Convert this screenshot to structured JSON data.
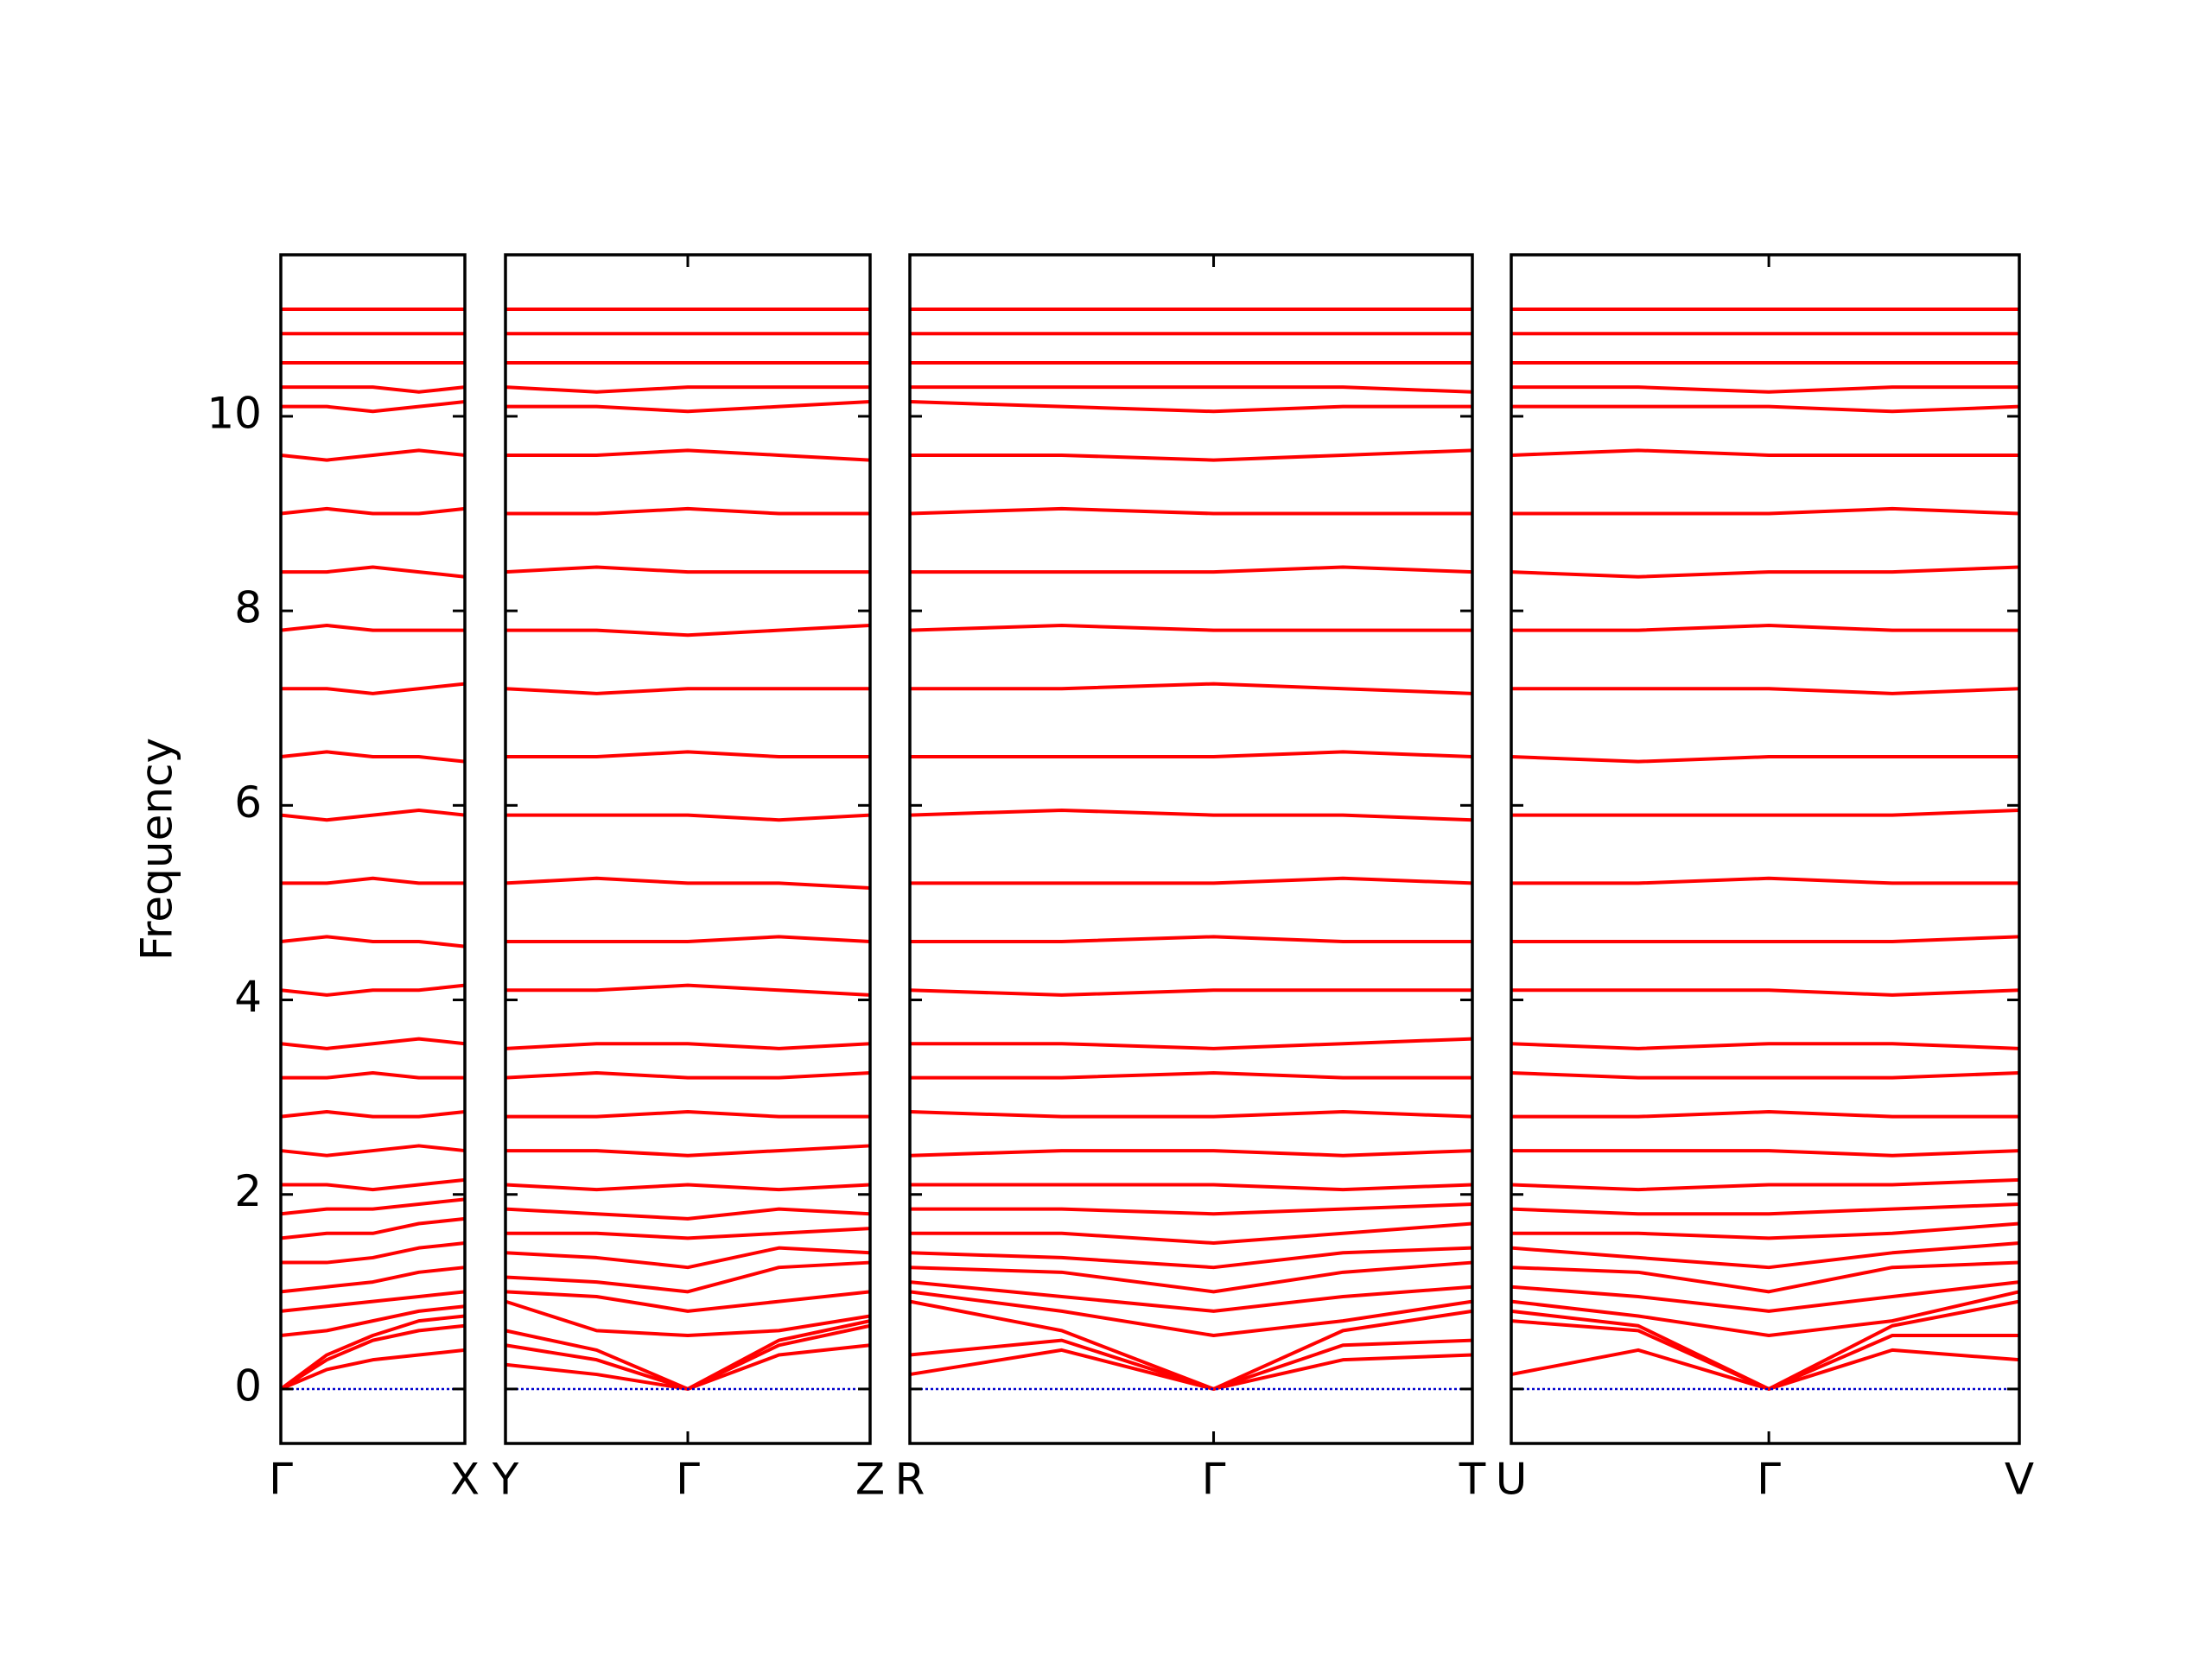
{
  "chart_data": [
    {
      "type": "line",
      "ylabel": "Frequency",
      "ylim": [
        -0.56,
        11.66
      ],
      "yticks": [
        0,
        2,
        4,
        6,
        8,
        10
      ],
      "color": "#ff0000",
      "zero_line": "#0000cc",
      "xlim": [
        0,
        1
      ],
      "xticks": [
        {
          "value": 0,
          "label": "Γ"
        },
        {
          "value": 1,
          "label": "X"
        }
      ],
      "x": [
        0,
        0.25,
        0.5,
        0.75,
        1
      ],
      "series": [
        {
          "values": [
            0,
            0.2,
            0.3,
            0.35,
            0.4
          ]
        },
        {
          "values": [
            0,
            0.3,
            0.5,
            0.6,
            0.65
          ]
        },
        {
          "values": [
            0,
            0.35,
            0.55,
            0.7,
            0.75
          ]
        },
        {
          "values": [
            0.55,
            0.6,
            0.7,
            0.8,
            0.85
          ]
        },
        {
          "values": [
            0.8,
            0.85,
            0.9,
            0.95,
            1.0
          ]
        },
        {
          "values": [
            1.0,
            1.05,
            1.1,
            1.2,
            1.25
          ]
        },
        {
          "values": [
            1.3,
            1.3,
            1.35,
            1.45,
            1.5
          ]
        },
        {
          "values": [
            1.55,
            1.6,
            1.6,
            1.7,
            1.75
          ]
        },
        {
          "values": [
            1.8,
            1.85,
            1.85,
            1.9,
            1.95
          ]
        },
        {
          "values": [
            2.1,
            2.1,
            2.05,
            2.1,
            2.15
          ]
        },
        {
          "values": [
            2.45,
            2.4,
            2.45,
            2.5,
            2.45
          ]
        },
        {
          "values": [
            2.8,
            2.85,
            2.8,
            2.8,
            2.85
          ]
        },
        {
          "values": [
            3.2,
            3.2,
            3.25,
            3.2,
            3.2
          ]
        },
        {
          "values": [
            3.55,
            3.5,
            3.55,
            3.6,
            3.55
          ]
        },
        {
          "values": [
            4.1,
            4.05,
            4.1,
            4.1,
            4.15
          ]
        },
        {
          "values": [
            4.6,
            4.65,
            4.6,
            4.6,
            4.55
          ]
        },
        {
          "values": [
            5.2,
            5.2,
            5.25,
            5.2,
            5.2
          ]
        },
        {
          "values": [
            5.9,
            5.85,
            5.9,
            5.95,
            5.9
          ]
        },
        {
          "values": [
            6.5,
            6.55,
            6.5,
            6.5,
            6.45
          ]
        },
        {
          "values": [
            7.2,
            7.2,
            7.15,
            7.2,
            7.25
          ]
        },
        {
          "values": [
            7.8,
            7.85,
            7.8,
            7.8,
            7.8
          ]
        },
        {
          "values": [
            8.4,
            8.4,
            8.45,
            8.4,
            8.35
          ]
        },
        {
          "values": [
            9.0,
            9.05,
            9.0,
            9.0,
            9.05
          ]
        },
        {
          "values": [
            9.6,
            9.55,
            9.6,
            9.65,
            9.6
          ]
        },
        {
          "values": [
            10.1,
            10.1,
            10.05,
            10.1,
            10.15
          ]
        },
        {
          "values": [
            10.3,
            10.3,
            10.3,
            10.25,
            10.3
          ]
        },
        {
          "values": [
            10.55,
            10.55,
            10.55,
            10.55,
            10.55
          ]
        },
        {
          "values": [
            10.85,
            10.85,
            10.85,
            10.85,
            10.85
          ]
        },
        {
          "values": [
            11.1,
            11.1,
            11.1,
            11.1,
            11.1
          ]
        }
      ]
    },
    {
      "type": "line",
      "ylim": [
        -0.56,
        11.66
      ],
      "color": "#ff0000",
      "zero_line": "#0000cc",
      "xlim": [
        0,
        2
      ],
      "xticks": [
        {
          "value": 0,
          "label": "Y"
        },
        {
          "value": 1,
          "label": "Γ"
        },
        {
          "value": 2,
          "label": "Z"
        }
      ],
      "x": [
        0,
        0.5,
        1,
        1.5,
        2
      ],
      "series": [
        {
          "values": [
            0.25,
            0.15,
            0,
            0.35,
            0.45
          ]
        },
        {
          "values": [
            0.45,
            0.3,
            0,
            0.45,
            0.65
          ]
        },
        {
          "values": [
            0.6,
            0.4,
            0,
            0.5,
            0.7
          ]
        },
        {
          "values": [
            0.9,
            0.6,
            0.55,
            0.6,
            0.75
          ]
        },
        {
          "values": [
            1.0,
            0.95,
            0.8,
            0.9,
            1.0
          ]
        },
        {
          "values": [
            1.15,
            1.1,
            1.0,
            1.25,
            1.3
          ]
        },
        {
          "values": [
            1.4,
            1.35,
            1.25,
            1.45,
            1.4
          ]
        },
        {
          "values": [
            1.6,
            1.6,
            1.55,
            1.6,
            1.65
          ]
        },
        {
          "values": [
            1.85,
            1.8,
            1.75,
            1.85,
            1.8
          ]
        },
        {
          "values": [
            2.1,
            2.05,
            2.1,
            2.05,
            2.1
          ]
        },
        {
          "values": [
            2.45,
            2.45,
            2.4,
            2.45,
            2.5
          ]
        },
        {
          "values": [
            2.8,
            2.8,
            2.85,
            2.8,
            2.8
          ]
        },
        {
          "values": [
            3.2,
            3.25,
            3.2,
            3.2,
            3.25
          ]
        },
        {
          "values": [
            3.5,
            3.55,
            3.55,
            3.5,
            3.55
          ]
        },
        {
          "values": [
            4.1,
            4.1,
            4.15,
            4.1,
            4.05
          ]
        },
        {
          "values": [
            4.6,
            4.6,
            4.6,
            4.65,
            4.6
          ]
        },
        {
          "values": [
            5.2,
            5.25,
            5.2,
            5.2,
            5.15
          ]
        },
        {
          "values": [
            5.9,
            5.9,
            5.9,
            5.85,
            5.9
          ]
        },
        {
          "values": [
            6.5,
            6.5,
            6.55,
            6.5,
            6.5
          ]
        },
        {
          "values": [
            7.2,
            7.15,
            7.2,
            7.2,
            7.2
          ]
        },
        {
          "values": [
            7.8,
            7.8,
            7.75,
            7.8,
            7.85
          ]
        },
        {
          "values": [
            8.4,
            8.45,
            8.4,
            8.4,
            8.4
          ]
        },
        {
          "values": [
            9.0,
            9.0,
            9.05,
            9.0,
            9.0
          ]
        },
        {
          "values": [
            9.6,
            9.6,
            9.65,
            9.6,
            9.55
          ]
        },
        {
          "values": [
            10.1,
            10.1,
            10.05,
            10.1,
            10.15
          ]
        },
        {
          "values": [
            10.3,
            10.25,
            10.3,
            10.3,
            10.3
          ]
        },
        {
          "values": [
            10.55,
            10.55,
            10.55,
            10.55,
            10.55
          ]
        },
        {
          "values": [
            10.85,
            10.85,
            10.85,
            10.85,
            10.85
          ]
        },
        {
          "values": [
            11.1,
            11.1,
            11.1,
            11.1,
            11.1
          ]
        }
      ]
    },
    {
      "type": "line",
      "ylim": [
        -0.56,
        11.66
      ],
      "color": "#ff0000",
      "zero_line": "#0000cc",
      "xlim": [
        0,
        1
      ],
      "xticks": [
        {
          "value": 0,
          "label": "R"
        },
        {
          "value": 0.54,
          "label": "Γ"
        },
        {
          "value": 1,
          "label": "T"
        }
      ],
      "x": [
        0,
        0.27,
        0.54,
        0.77,
        1
      ],
      "series": [
        {
          "values": [
            0.15,
            0.4,
            0,
            0.3,
            0.35
          ]
        },
        {
          "values": [
            0.35,
            0.5,
            0,
            0.45,
            0.5
          ]
        },
        {
          "values": [
            0.9,
            0.6,
            0,
            0.6,
            0.8
          ]
        },
        {
          "values": [
            1.0,
            0.8,
            0.55,
            0.7,
            0.9
          ]
        },
        {
          "values": [
            1.1,
            0.95,
            0.8,
            0.95,
            1.05
          ]
        },
        {
          "values": [
            1.25,
            1.2,
            1.0,
            1.2,
            1.3
          ]
        },
        {
          "values": [
            1.4,
            1.35,
            1.25,
            1.4,
            1.45
          ]
        },
        {
          "values": [
            1.6,
            1.6,
            1.5,
            1.6,
            1.7
          ]
        },
        {
          "values": [
            1.85,
            1.85,
            1.8,
            1.85,
            1.9
          ]
        },
        {
          "values": [
            2.1,
            2.1,
            2.1,
            2.05,
            2.1
          ]
        },
        {
          "values": [
            2.4,
            2.45,
            2.45,
            2.4,
            2.45
          ]
        },
        {
          "values": [
            2.85,
            2.8,
            2.8,
            2.85,
            2.8
          ]
        },
        {
          "values": [
            3.2,
            3.2,
            3.25,
            3.2,
            3.2
          ]
        },
        {
          "values": [
            3.55,
            3.55,
            3.5,
            3.55,
            3.6
          ]
        },
        {
          "values": [
            4.1,
            4.05,
            4.1,
            4.1,
            4.1
          ]
        },
        {
          "values": [
            4.6,
            4.6,
            4.65,
            4.6,
            4.6
          ]
        },
        {
          "values": [
            5.2,
            5.2,
            5.2,
            5.25,
            5.2
          ]
        },
        {
          "values": [
            5.9,
            5.95,
            5.9,
            5.9,
            5.85
          ]
        },
        {
          "values": [
            6.5,
            6.5,
            6.5,
            6.55,
            6.5
          ]
        },
        {
          "values": [
            7.2,
            7.2,
            7.25,
            7.2,
            7.15
          ]
        },
        {
          "values": [
            7.8,
            7.85,
            7.8,
            7.8,
            7.8
          ]
        },
        {
          "values": [
            8.4,
            8.4,
            8.4,
            8.45,
            8.4
          ]
        },
        {
          "values": [
            9.0,
            9.05,
            9.0,
            9.0,
            9.0
          ]
        },
        {
          "values": [
            9.6,
            9.6,
            9.55,
            9.6,
            9.65
          ]
        },
        {
          "values": [
            10.15,
            10.1,
            10.05,
            10.1,
            10.1
          ]
        },
        {
          "values": [
            10.3,
            10.3,
            10.3,
            10.3,
            10.25
          ]
        },
        {
          "values": [
            10.55,
            10.55,
            10.55,
            10.55,
            10.55
          ]
        },
        {
          "values": [
            10.85,
            10.85,
            10.85,
            10.85,
            10.85
          ]
        },
        {
          "values": [
            11.1,
            11.1,
            11.1,
            11.1,
            11.1
          ]
        }
      ]
    },
    {
      "type": "line",
      "ylim": [
        -0.56,
        11.66
      ],
      "color": "#ff0000",
      "zero_line": "#0000cc",
      "xlim": [
        0,
        1
      ],
      "xticks": [
        {
          "value": 0,
          "label": "U"
        },
        {
          "value": 0.507,
          "label": "Γ"
        },
        {
          "value": 1,
          "label": "V"
        }
      ],
      "x": [
        0,
        0.25,
        0.507,
        0.75,
        1
      ],
      "series": [
        {
          "values": [
            0.15,
            0.4,
            0,
            0.4,
            0.3
          ]
        },
        {
          "values": [
            0.7,
            0.6,
            0,
            0.55,
            0.55
          ]
        },
        {
          "values": [
            0.8,
            0.65,
            0,
            0.65,
            0.9
          ]
        },
        {
          "values": [
            0.9,
            0.75,
            0.55,
            0.7,
            1.0
          ]
        },
        {
          "values": [
            1.05,
            0.95,
            0.8,
            0.95,
            1.1
          ]
        },
        {
          "values": [
            1.25,
            1.2,
            1.0,
            1.25,
            1.3
          ]
        },
        {
          "values": [
            1.45,
            1.35,
            1.25,
            1.4,
            1.5
          ]
        },
        {
          "values": [
            1.6,
            1.6,
            1.55,
            1.6,
            1.7
          ]
        },
        {
          "values": [
            1.85,
            1.8,
            1.8,
            1.85,
            1.9
          ]
        },
        {
          "values": [
            2.1,
            2.05,
            2.1,
            2.1,
            2.15
          ]
        },
        {
          "values": [
            2.45,
            2.45,
            2.45,
            2.4,
            2.45
          ]
        },
        {
          "values": [
            2.8,
            2.8,
            2.85,
            2.8,
            2.8
          ]
        },
        {
          "values": [
            3.25,
            3.2,
            3.2,
            3.2,
            3.25
          ]
        },
        {
          "values": [
            3.55,
            3.5,
            3.55,
            3.55,
            3.5
          ]
        },
        {
          "values": [
            4.1,
            4.1,
            4.1,
            4.05,
            4.1
          ]
        },
        {
          "values": [
            4.6,
            4.6,
            4.6,
            4.6,
            4.65
          ]
        },
        {
          "values": [
            5.2,
            5.2,
            5.25,
            5.2,
            5.2
          ]
        },
        {
          "values": [
            5.9,
            5.9,
            5.9,
            5.9,
            5.95
          ]
        },
        {
          "values": [
            6.5,
            6.45,
            6.5,
            6.5,
            6.5
          ]
        },
        {
          "values": [
            7.2,
            7.2,
            7.2,
            7.15,
            7.2
          ]
        },
        {
          "values": [
            7.8,
            7.8,
            7.85,
            7.8,
            7.8
          ]
        },
        {
          "values": [
            8.4,
            8.35,
            8.4,
            8.4,
            8.45
          ]
        },
        {
          "values": [
            9.0,
            9.0,
            9.0,
            9.05,
            9.0
          ]
        },
        {
          "values": [
            9.6,
            9.65,
            9.6,
            9.6,
            9.6
          ]
        },
        {
          "values": [
            10.1,
            10.1,
            10.1,
            10.05,
            10.1
          ]
        },
        {
          "values": [
            10.3,
            10.3,
            10.25,
            10.3,
            10.3
          ]
        },
        {
          "values": [
            10.55,
            10.55,
            10.55,
            10.55,
            10.55
          ]
        },
        {
          "values": [
            10.85,
            10.85,
            10.85,
            10.85,
            10.85
          ]
        },
        {
          "values": [
            11.1,
            11.1,
            11.1,
            11.1,
            11.1
          ]
        }
      ]
    }
  ]
}
